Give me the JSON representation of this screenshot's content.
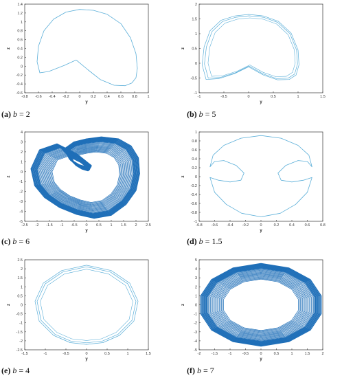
{
  "chart_data": [
    {
      "id": "a",
      "type": "line",
      "caption": {
        "tag": "(a)",
        "var": "b",
        "rest": " = 2"
      },
      "xlabel": "y",
      "ylabel": "z",
      "xlim": [
        -0.8,
        1
      ],
      "ylim": [
        -0.6,
        1.4
      ],
      "xticks": [
        "-0.8",
        "-0.6",
        "-0.4",
        "-0.2",
        "0",
        "0.2",
        "0.4",
        "0.6",
        "0.8",
        "1"
      ],
      "yticks": [
        "-0.6",
        "-0.4",
        "-0.2",
        "0",
        "0.2",
        "0.4",
        "0.6",
        "0.8",
        "1",
        "1.2",
        "1.4"
      ],
      "color": "#5aaed8",
      "density": "single",
      "series": [
        {
          "x": [
            -0.05,
            -0.22,
            -0.45,
            -0.58,
            -0.62,
            -0.6,
            -0.52,
            -0.38,
            -0.2,
            0.0,
            0.2,
            0.4,
            0.6,
            0.74,
            0.82,
            0.84,
            0.82,
            0.76,
            0.66,
            0.5,
            0.3,
            0.12,
            -0.02,
            -0.05
          ],
          "y": [
            0.14,
            0.02,
            -0.12,
            -0.15,
            0.1,
            0.45,
            0.8,
            1.06,
            1.22,
            1.28,
            1.26,
            1.17,
            0.96,
            0.64,
            0.28,
            -0.05,
            -0.26,
            -0.38,
            -0.44,
            -0.43,
            -0.3,
            -0.08,
            0.1,
            0.14
          ]
        }
      ]
    },
    {
      "id": "b",
      "type": "line",
      "caption": {
        "tag": "(b)",
        "var": "b",
        "rest": " = 5"
      },
      "xlabel": "y",
      "ylabel": "z",
      "xlim": [
        -1,
        1.5
      ],
      "ylim": [
        -1,
        2
      ],
      "xticks": [
        "-1",
        "-0.5",
        "0",
        "0.5",
        "1",
        "1.5"
      ],
      "yticks": [
        "-1",
        "-0.5",
        "0",
        "0.5",
        "1",
        "1.5",
        "2"
      ],
      "color": "#5aaed8",
      "density": "loops",
      "series": [
        {
          "x": [
            0.0,
            -0.28,
            -0.6,
            -0.86,
            -0.94,
            -0.9,
            -0.78,
            -0.56,
            -0.28,
            0.0,
            0.3,
            0.6,
            0.86,
            1.0,
            1.02,
            0.96,
            0.82,
            0.58,
            0.3,
            0.06,
            0.0
          ],
          "y": [
            -0.12,
            -0.35,
            -0.52,
            -0.55,
            -0.05,
            0.55,
            1.1,
            1.45,
            1.6,
            1.65,
            1.6,
            1.42,
            1.02,
            0.45,
            -0.05,
            -0.4,
            -0.55,
            -0.56,
            -0.4,
            -0.18,
            -0.12
          ]
        }
      ]
    },
    {
      "id": "c",
      "type": "line",
      "caption": {
        "tag": "(c)",
        "var": "b",
        "rest": " = 6"
      },
      "xlabel": "y",
      "ylabel": "z",
      "xlim": [
        -2.5,
        2.5
      ],
      "ylim": [
        -5,
        4
      ],
      "xticks": [
        "-2.5",
        "-2",
        "-1.5",
        "-1",
        "-0.5",
        "0",
        "0.5",
        "1",
        "1.5",
        "2",
        "2.5"
      ],
      "yticks": [
        "-5",
        "-4",
        "-3",
        "-2",
        "-1",
        "0",
        "1",
        "2",
        "3",
        "4"
      ],
      "color": "#1f6fb8",
      "density": "dense",
      "series": [
        {
          "x": [
            0.2,
            -0.4,
            -1.2,
            -1.9,
            -2.25,
            -2.1,
            -1.7,
            -1.1,
            -0.4,
            0.3,
            1.0,
            1.6,
            2.0,
            2.15,
            2.1,
            1.8,
            1.3,
            0.6,
            0.0,
            -0.5,
            -0.9,
            -0.7,
            -0.3,
            0.1,
            0.2
          ],
          "y": [
            0.6,
            1.8,
            2.8,
            2.2,
            0.3,
            -1.4,
            -2.6,
            -3.6,
            -4.3,
            -4.7,
            -4.4,
            -3.3,
            -1.9,
            -0.2,
            1.4,
            2.6,
            3.3,
            3.5,
            3.3,
            3.0,
            2.3,
            1.3,
            0.7,
            0.4,
            0.6
          ]
        }
      ]
    },
    {
      "id": "d",
      "type": "line",
      "caption": {
        "tag": "(d)",
        "var": "b",
        "rest": " = 1.5"
      },
      "xlabel": "y",
      "ylabel": "z",
      "xlim": [
        -0.8,
        0.8
      ],
      "ylim": [
        -1,
        1
      ],
      "xticks": [
        "-0.8",
        "-0.6",
        "-0.4",
        "-0.2",
        "0",
        "0.2",
        "0.4",
        "0.6",
        "0.8"
      ],
      "yticks": [
        "-1",
        "-0.8",
        "-0.6",
        "-0.4",
        "-0.2",
        "0",
        "0.2",
        "0.4",
        "0.6",
        "0.8",
        "1"
      ],
      "color": "#5aaed8",
      "density": "single",
      "series": [
        {
          "x": [
            0.0,
            -0.26,
            -0.48,
            -0.62,
            -0.66,
            -0.6,
            -0.48,
            -0.32,
            -0.22,
            -0.26,
            -0.4,
            -0.55,
            -0.66,
            -0.6,
            -0.45,
            -0.25,
            0.0,
            0.25,
            0.45,
            0.6,
            0.66,
            0.55,
            0.4,
            0.26,
            0.22,
            0.32,
            0.48,
            0.6,
            0.66,
            0.62,
            0.48,
            0.26,
            0.0
          ],
          "y": [
            0.92,
            0.86,
            0.7,
            0.48,
            0.22,
            0.34,
            0.36,
            0.25,
            0.08,
            -0.08,
            -0.12,
            -0.08,
            -0.02,
            -0.35,
            -0.62,
            -0.82,
            -0.9,
            -0.82,
            -0.62,
            -0.35,
            -0.02,
            -0.08,
            -0.12,
            -0.08,
            0.08,
            0.25,
            0.36,
            0.34,
            0.22,
            0.48,
            0.7,
            0.86,
            0.92
          ]
        }
      ]
    },
    {
      "id": "e",
      "type": "line",
      "caption": {
        "tag": "(e)",
        "var": "b",
        "rest": " = 4"
      },
      "xlabel": "y",
      "ylabel": "z",
      "xlim": [
        -1.5,
        1.5
      ],
      "ylim": [
        -2.5,
        2.5
      ],
      "xticks": [
        "-1.5",
        "-1",
        "-0.5",
        "0",
        "0.5",
        "1",
        "1.5"
      ],
      "yticks": [
        "-2.5",
        "-2",
        "-1.5",
        "-1",
        "-0.5",
        "0",
        "0.5",
        "1",
        "1.5",
        "2",
        "2.5"
      ],
      "color": "#5aaed8",
      "density": "loops",
      "series": [
        {
          "x": [
            0.0,
            -0.6,
            -1.05,
            -1.25,
            -1.15,
            -0.8,
            -0.4,
            0.0,
            0.4,
            0.8,
            1.15,
            1.25,
            1.05,
            0.6,
            0.0
          ],
          "y": [
            2.2,
            1.9,
            1.2,
            0.2,
            -0.9,
            -1.7,
            -2.1,
            -2.2,
            -2.1,
            -1.7,
            -0.9,
            0.2,
            1.2,
            1.9,
            2.2
          ]
        }
      ]
    },
    {
      "id": "f",
      "type": "line",
      "caption": {
        "tag": "(f)",
        "var": "b",
        "rest": " = 7"
      },
      "xlabel": "y",
      "ylabel": "z",
      "xlim": [
        -2,
        2
      ],
      "ylim": [
        -5,
        5
      ],
      "xticks": [
        "-2",
        "-1.5",
        "-1",
        "-0.5",
        "0",
        "0.5",
        "1",
        "1.5",
        "2"
      ],
      "yticks": [
        "-5",
        "-4",
        "-3",
        "-2",
        "-1",
        "0",
        "1",
        "2",
        "3",
        "4",
        "5"
      ],
      "color": "#1f6fb8",
      "density": "dense",
      "series": [
        {
          "x": [
            0.0,
            -0.9,
            -1.6,
            -1.95,
            -1.95,
            -1.6,
            -0.9,
            0.0,
            0.9,
            1.6,
            1.95,
            1.95,
            1.6,
            0.9,
            0.0
          ],
          "y": [
            4.6,
            4.1,
            2.8,
            1.0,
            -1.0,
            -2.8,
            -4.1,
            -4.6,
            -4.1,
            -2.8,
            -1.0,
            1.0,
            2.8,
            4.1,
            4.6
          ]
        }
      ]
    }
  ]
}
